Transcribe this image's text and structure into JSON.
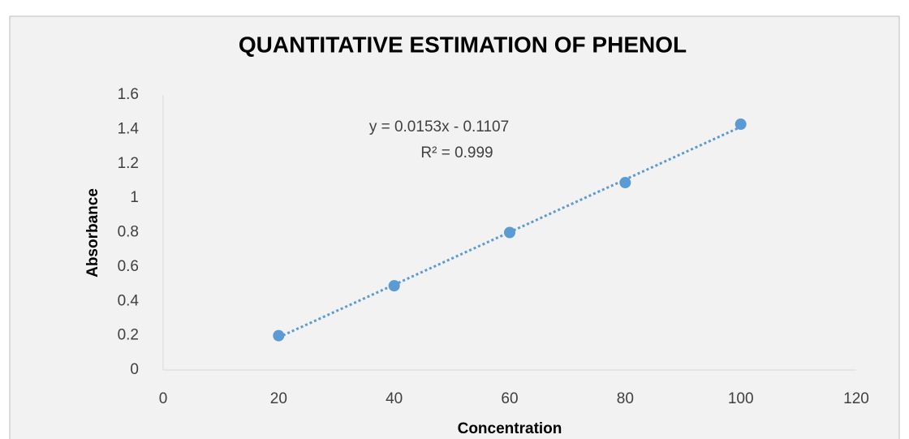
{
  "chart_data": {
    "type": "scatter",
    "title": "QUANTITATIVE ESTIMATION OF PHENOL",
    "x_label": "Concentration",
    "y_label": "Absorbance",
    "series": [
      {
        "name": "Absorbance",
        "color": "#5b9bd5",
        "x": [
          20,
          40,
          60,
          80,
          100
        ],
        "values": [
          0.2,
          0.49,
          0.8,
          1.09,
          1.43
        ]
      }
    ],
    "trendline": {
      "style": "dotted",
      "annotations": [
        "y = 0.0153x - 0.1107",
        "R² = 0.999"
      ]
    },
    "xlim": [
      0,
      120
    ],
    "xticks": [
      0,
      20,
      40,
      60,
      80,
      100,
      120
    ],
    "ylim": [
      0,
      1.6
    ],
    "yticks": [
      {
        "value": 0,
        "label": "0"
      },
      {
        "value": 0.2,
        "label": "0.2"
      },
      {
        "value": 0.4,
        "label": "0.4"
      },
      {
        "value": 0.6,
        "label": "0.6"
      },
      {
        "value": 0.8,
        "label": "0.8"
      },
      {
        "value": 1,
        "label": "1"
      },
      {
        "value": 1.2,
        "label": "1.2"
      },
      {
        "value": 1.4,
        "label": "1.4"
      },
      {
        "value": 1.6,
        "label": "1.6"
      }
    ],
    "grid": false
  }
}
